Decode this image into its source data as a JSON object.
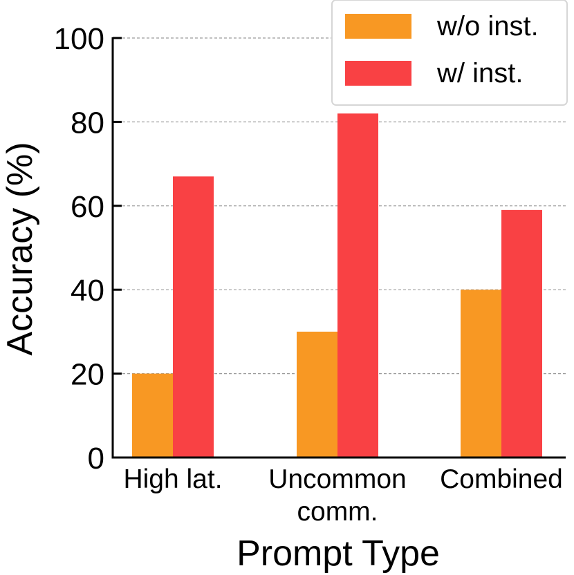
{
  "chart_data": {
    "type": "bar",
    "categories": [
      "High lat.",
      "Uncommon\ncomm.",
      "Combined"
    ],
    "series": [
      {
        "name": "w/o inst.",
        "values": [
          20,
          30,
          40
        ],
        "color": "#F89823"
      },
      {
        "name": "w/ inst.",
        "values": [
          67,
          82,
          59
        ],
        "color": "#F94144"
      }
    ],
    "xlabel": "Prompt Type",
    "ylabel": "Accuracy (%)",
    "ylim": [
      0,
      100
    ],
    "yticks": [
      0,
      20,
      40,
      60,
      80,
      100
    ],
    "grid": "horizontal dashed",
    "legend_position": "top-right"
  }
}
